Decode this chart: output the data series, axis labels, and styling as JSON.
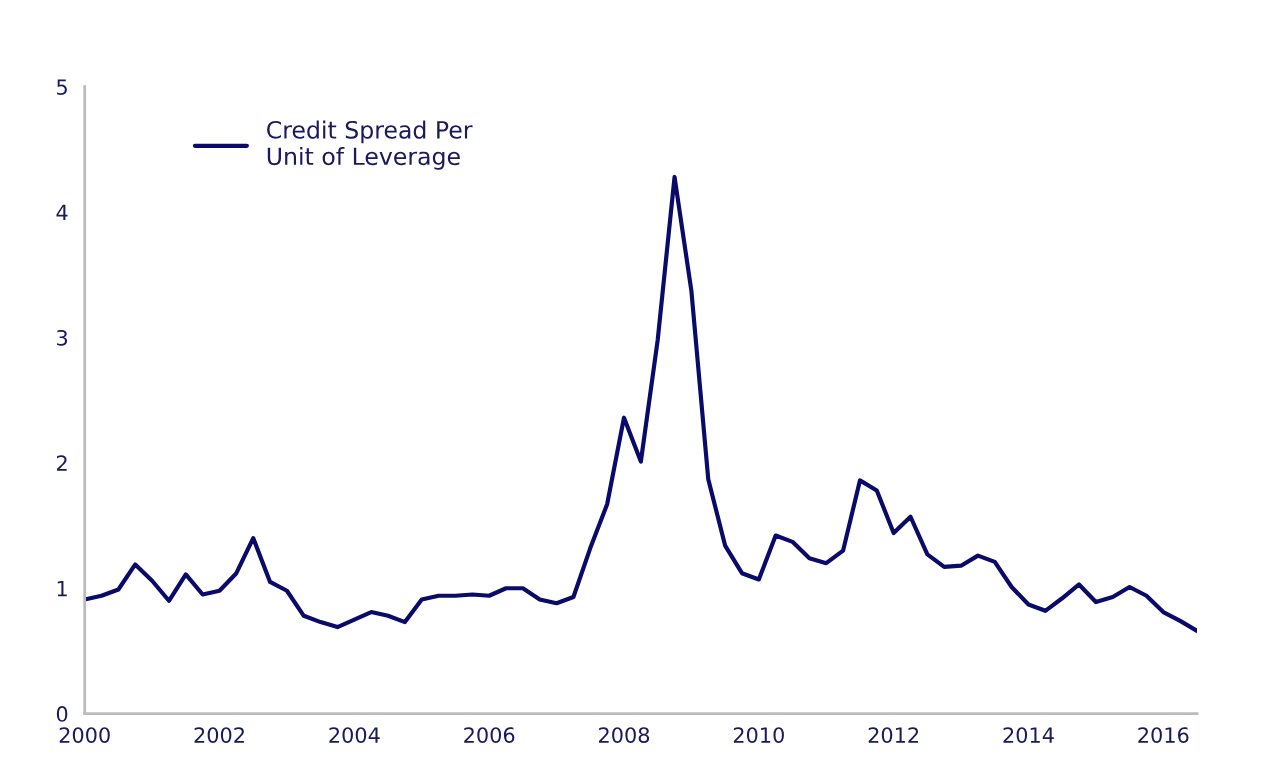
{
  "chart_data": {
    "type": "line",
    "xlim": [
      2000,
      2016.5
    ],
    "xticks": [
      2000,
      2002,
      2004,
      2006,
      2008,
      2010,
      2012,
      2014,
      2016
    ],
    "ylim": [
      0,
      5
    ],
    "yticks": [
      0,
      1,
      2,
      3,
      4,
      5
    ],
    "grid": false,
    "legend": "top left",
    "marker": "none",
    "line_style": "solid",
    "series": [
      {
        "name": "Credit Spread Per\nUnit of Leverage",
        "color": "#0a0a6b",
        "x": [
          2000,
          2000.25,
          2000.5,
          2000.75,
          2001,
          2001.25,
          2001.5,
          2001.75,
          2002,
          2002.25,
          2002.5,
          2002.75,
          2003,
          2003.25,
          2003.5,
          2003.75,
          2004,
          2004.25,
          2004.5,
          2004.75,
          2005,
          2005.25,
          2005.5,
          2005.75,
          2006,
          2006.25,
          2006.5,
          2006.75,
          2007,
          2007.25,
          2007.5,
          2007.75,
          2008,
          2008.25,
          2008.5,
          2008.75,
          2009,
          2009.25,
          2009.5,
          2009.75,
          2010,
          2010.25,
          2010.5,
          2010.75,
          2011,
          2011.25,
          2011.5,
          2011.75,
          2012,
          2012.25,
          2012.5,
          2012.75,
          2013,
          2013.25,
          2013.5,
          2013.75,
          2014,
          2014.25,
          2014.5,
          2014.75,
          2015,
          2015.25,
          2015.5,
          2015.75,
          2016,
          2016.25,
          2016.5
        ],
        "values": [
          0.91,
          0.94,
          0.99,
          1.19,
          1.06,
          0.9,
          1.11,
          0.95,
          0.98,
          1.12,
          1.4,
          1.05,
          0.98,
          0.78,
          0.73,
          0.69,
          0.75,
          0.81,
          0.78,
          0.73,
          0.91,
          0.94,
          0.94,
          0.95,
          0.94,
          1.0,
          1.0,
          0.91,
          0.88,
          0.93,
          1.32,
          1.67,
          2.36,
          2.01,
          2.98,
          4.28,
          3.37,
          1.87,
          1.34,
          1.12,
          1.07,
          1.42,
          1.37,
          1.24,
          1.2,
          1.3,
          1.86,
          1.78,
          1.44,
          1.57,
          1.27,
          1.17,
          1.18,
          1.26,
          1.21,
          1.01,
          0.87,
          0.82,
          0.92,
          1.03,
          0.89,
          0.93,
          1.01,
          0.94,
          0.81,
          0.74,
          0.66
        ]
      }
    ]
  }
}
